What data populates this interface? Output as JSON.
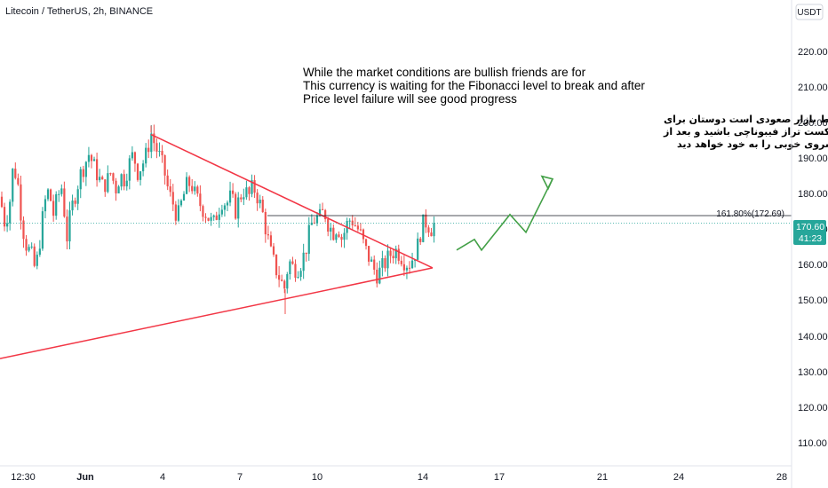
{
  "header": {
    "title": "Litecoin / TetherUS, 2h, BINANCE"
  },
  "currency_label": "USDT",
  "price_badge": {
    "price": "170.60",
    "countdown": "41:23"
  },
  "fib_label": "161.80%(172.69)",
  "notes": {
    "english": [
      "While the market conditions are bullish friends are for",
      "This currency is waiting for the Fibonacci level to break and after",
      "Price level failure will see good progress"
    ],
    "persian": [
      "در حالی که شرایط بازار صعودی است دوستان برای",
      "این ارز منتظر شکست تراز فیبوناچی باشید و بعد از",
      "شکست تراز قیمت پیشروی خوبی را به خود خواهد دید"
    ]
  },
  "colors": {
    "up": "#26a69a",
    "down": "#ef5350",
    "trendline": "#f23645",
    "projection_arrow": "#43a047",
    "price_line": "#26a69a",
    "fib_line": "#131722",
    "axis_text": "#131722"
  },
  "chart_data": {
    "type": "candlestick",
    "title": "Litecoin / TetherUS, 2h, BINANCE",
    "y_axis": {
      "ticks": [
        110,
        120,
        130,
        140,
        150,
        160,
        170,
        180,
        190,
        200,
        210,
        220
      ],
      "range": [
        103,
        232
      ],
      "side": "right"
    },
    "x_axis": {
      "ticks": [
        {
          "label": "12:30",
          "bold": false
        },
        {
          "label": "Jun",
          "bold": true
        },
        {
          "label": "4",
          "bold": false
        },
        {
          "label": "7",
          "bold": false
        },
        {
          "label": "10",
          "bold": false
        },
        {
          "label": "14",
          "bold": false
        },
        {
          "label": "17",
          "bold": false
        },
        {
          "label": "21",
          "bold": false
        },
        {
          "label": "24",
          "bold": false
        },
        {
          "label": "28",
          "bold": false
        }
      ]
    },
    "grid": false,
    "last_price": 170.6,
    "fib_level": {
      "ratio": "161.80%",
      "price": 172.69
    },
    "price_path": [
      [
        0,
        178
      ],
      [
        5,
        171
      ],
      [
        10,
        174
      ],
      [
        15,
        187
      ],
      [
        20,
        182
      ],
      [
        25,
        170
      ],
      [
        30,
        164
      ],
      [
        35,
        162
      ],
      [
        40,
        157
      ],
      [
        45,
        166
      ],
      [
        50,
        176
      ],
      [
        55,
        180
      ],
      [
        60,
        173
      ],
      [
        65,
        178
      ],
      [
        70,
        181
      ],
      [
        75,
        166
      ],
      [
        80,
        174
      ],
      [
        85,
        179
      ],
      [
        90,
        184
      ],
      [
        95,
        187
      ],
      [
        100,
        190
      ],
      [
        105,
        187
      ],
      [
        110,
        184
      ],
      [
        115,
        181
      ],
      [
        120,
        182
      ],
      [
        125,
        185
      ],
      [
        130,
        180
      ],
      [
        135,
        184
      ],
      [
        140,
        183
      ],
      [
        145,
        187
      ],
      [
        150,
        190
      ],
      [
        155,
        185
      ],
      [
        160,
        187
      ],
      [
        165,
        190
      ],
      [
        170,
        196
      ],
      [
        175,
        192
      ],
      [
        180,
        189
      ],
      [
        185,
        185
      ],
      [
        190,
        179
      ],
      [
        195,
        176
      ],
      [
        200,
        172
      ],
      [
        205,
        177
      ],
      [
        210,
        181
      ],
      [
        215,
        182
      ],
      [
        220,
        178
      ],
      [
        225,
        176
      ],
      [
        230,
        174
      ],
      [
        235,
        172
      ],
      [
        240,
        170
      ],
      [
        245,
        174
      ],
      [
        250,
        177
      ],
      [
        255,
        176
      ],
      [
        260,
        178
      ],
      [
        265,
        174
      ],
      [
        270,
        178
      ],
      [
        275,
        180
      ],
      [
        280,
        178
      ],
      [
        285,
        181
      ],
      [
        290,
        178
      ],
      [
        295,
        174
      ],
      [
        300,
        168
      ],
      [
        305,
        162
      ],
      [
        310,
        158
      ],
      [
        315,
        155
      ],
      [
        320,
        152
      ],
      [
        325,
        160
      ],
      [
        330,
        158
      ],
      [
        335,
        158
      ],
      [
        340,
        160
      ],
      [
        345,
        164
      ],
      [
        350,
        170
      ],
      [
        355,
        172
      ],
      [
        360,
        172
      ],
      [
        365,
        174
      ],
      [
        370,
        170
      ],
      [
        375,
        168
      ],
      [
        380,
        170
      ],
      [
        385,
        166
      ],
      [
        390,
        170
      ],
      [
        395,
        172
      ],
      [
        400,
        170
      ],
      [
        405,
        168
      ],
      [
        410,
        164
      ],
      [
        415,
        161
      ],
      [
        420,
        158
      ],
      [
        425,
        156
      ],
      [
        430,
        158
      ],
      [
        435,
        160
      ],
      [
        440,
        162
      ],
      [
        445,
        163
      ],
      [
        450,
        162
      ],
      [
        455,
        160
      ],
      [
        460,
        159
      ],
      [
        465,
        161
      ],
      [
        470,
        164
      ],
      [
        475,
        170
      ],
      [
        480,
        171
      ],
      [
        485,
        169
      ],
      [
        490,
        170.6
      ]
    ],
    "trendlines": [
      {
        "name": "upper",
        "from": [
          170,
          195.5
        ],
        "to": [
          487,
          158
        ]
      },
      {
        "name": "lower",
        "from": [
          0,
          132.5
        ],
        "to": [
          487,
          158
        ]
      }
    ],
    "projection": [
      [
        514,
        163
      ],
      [
        534,
        166
      ],
      [
        542,
        163
      ],
      [
        574,
        173
      ],
      [
        592,
        168
      ],
      [
        622,
        183
      ]
    ],
    "xlim": [
      0,
      891
    ]
  }
}
